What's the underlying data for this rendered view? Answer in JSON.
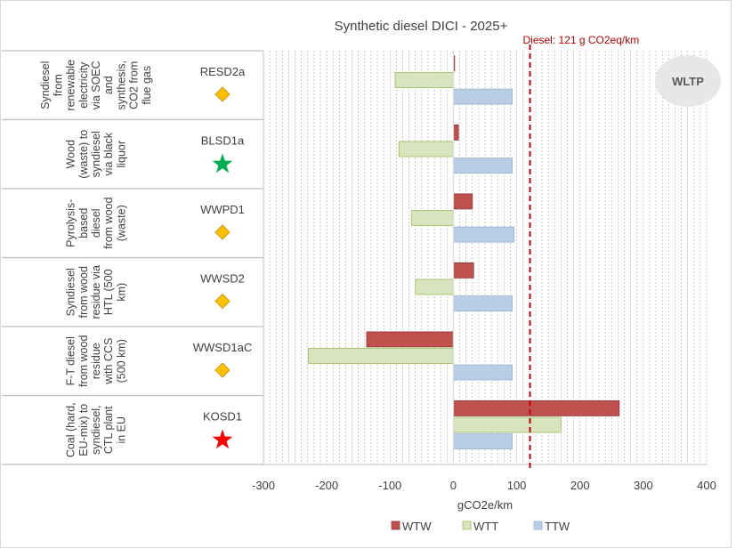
{
  "chart_data": {
    "type": "bar",
    "orientation": "horizontal",
    "title": "Synthetic diesel DICI - 2025+",
    "xlabel": "gCO2e/km",
    "xlim": [
      -300,
      400
    ],
    "xticks": [
      "-300",
      "-200",
      "-100",
      "0",
      "100",
      "200",
      "300",
      "400"
    ],
    "badge": "WLTP",
    "reference": {
      "value": 121,
      "label": "Diesel: 121 g CO2eq/km",
      "color": "#c00000"
    },
    "colors": {
      "WTW": "#c0504d",
      "WTT": "#d7e4bd",
      "TTW": "#b9cde5"
    },
    "pathways": [
      {
        "code": "RESD2a",
        "description": "Syndiesel from renewable electricity via SOEC and synthesis, CO2 from flue gas",
        "desc_lines": [
          "Syndiesel",
          "from",
          "renewable",
          "electricity",
          "via SOEC",
          "and",
          "synthesis,",
          "CO2 from",
          "flue gas"
        ],
        "marker": "diamond",
        "marker_color": "#ffc000"
      },
      {
        "code": "BLSD1a",
        "description": "Wood (waste) to syndiesel via black liquor",
        "desc_lines": [
          "Wood",
          "(waste) to",
          "syndiesel",
          "via black",
          "liquor"
        ],
        "marker": "star",
        "marker_color": "#00b050"
      },
      {
        "code": "WWPD1",
        "description": "Pyrolysis-based diesel from wood (waste)",
        "desc_lines": [
          "Pyrolysis-",
          "based",
          "diesel",
          "from wood",
          "(waste)"
        ],
        "marker": "diamond",
        "marker_color": "#ffc000"
      },
      {
        "code": "WWSD2",
        "description": "Syndiesel from wood residue via HTL (500 km)",
        "desc_lines": [
          "Syndiesel",
          "from wood",
          "residue via",
          "HTL (500",
          "km)"
        ],
        "marker": "diamond",
        "marker_color": "#ffc000"
      },
      {
        "code": "WWSD1aC",
        "description": "F-T diesel from wood residue with CCS (500 km)",
        "desc_lines": [
          "F-T diesel",
          "from wood",
          "residue",
          "with CCS",
          "(500 km)"
        ],
        "marker": "diamond",
        "marker_color": "#ffc000"
      },
      {
        "code": "KOSD1",
        "description": "Coal (hard, EU-mix) to syndiesel, CTL plant in EU",
        "desc_lines": [
          "Coal (hard,",
          "EU-mix) to",
          "syndiesel,",
          "CTL plant",
          "in EU"
        ],
        "marker": "star",
        "marker_color": "#ff0000"
      }
    ],
    "series": [
      {
        "name": "WTW",
        "values": [
          2,
          8,
          30,
          32,
          -137,
          262
        ]
      },
      {
        "name": "WTT",
        "values": [
          -92,
          -86,
          -66,
          -60,
          -229,
          170
        ]
      },
      {
        "name": "TTW",
        "values": [
          93,
          93,
          96,
          93,
          93,
          93
        ]
      }
    ],
    "legend": [
      "WTW",
      "WTT",
      "TTW"
    ],
    "legend_position": "bottom"
  }
}
